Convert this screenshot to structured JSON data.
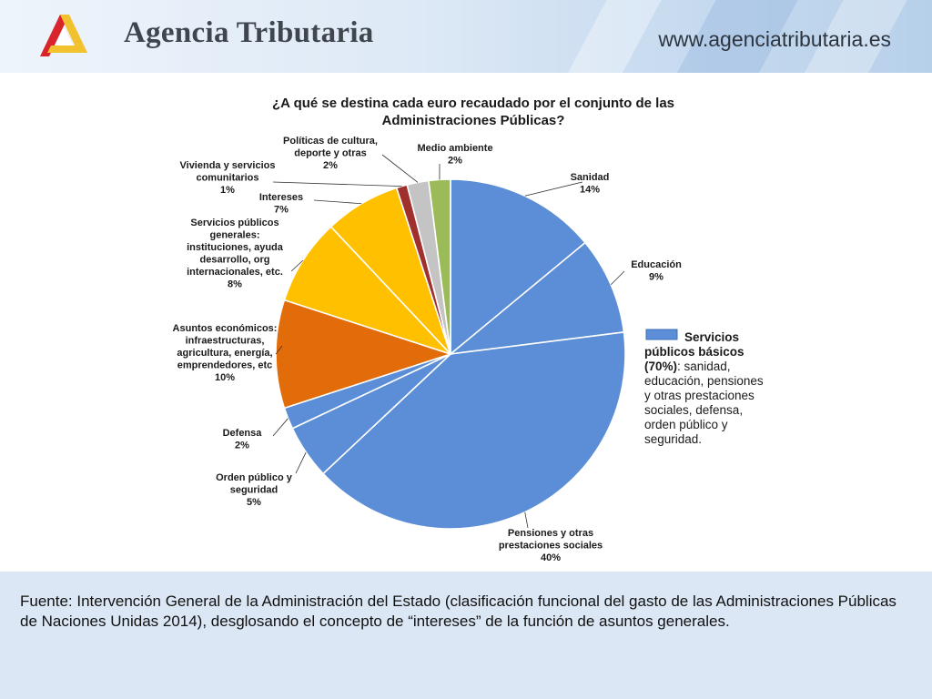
{
  "header": {
    "brand_name": "Agencia Tributaria",
    "site_url": "www.agenciatributaria.es",
    "logo_icon": "agencia-tributaria-logo",
    "colors": {
      "logo_red": "#d9242b",
      "logo_yellow": "#f2c12e",
      "header_blue": "#c9dcf0"
    }
  },
  "chart_data": {
    "type": "pie",
    "title_lines": [
      "¿A qué se destina cada euro recaudado por el conjunto de las",
      "Administraciones Públicas?"
    ],
    "unit": "%",
    "slices": [
      {
        "key": "sanidad",
        "label_lines": [
          "Sanidad"
        ],
        "value": 14,
        "value_label": "14%",
        "color": "#5b8ed6"
      },
      {
        "key": "educacion",
        "label_lines": [
          "Educación"
        ],
        "value": 9,
        "value_label": "9%",
        "color": "#5b8ed6"
      },
      {
        "key": "pensiones",
        "label_lines": [
          "Pensiones y otras",
          "prestaciones sociales"
        ],
        "value": 40,
        "value_label": "40%",
        "color": "#5b8ed6"
      },
      {
        "key": "orden",
        "label_lines": [
          "Orden público y",
          "seguridad"
        ],
        "value": 5,
        "value_label": "5%",
        "color": "#5b8ed6"
      },
      {
        "key": "defensa",
        "label_lines": [
          "Defensa"
        ],
        "value": 2,
        "value_label": "2%",
        "color": "#5b8ed6"
      },
      {
        "key": "economicos",
        "label_lines": [
          "Asuntos económicos:",
          "infraestructuras,",
          "agricultura, energía,",
          "emprendedores, etc"
        ],
        "value": 10,
        "value_label": "10%",
        "color": "#e36c0a"
      },
      {
        "key": "generales",
        "label_lines": [
          "Servicios públicos",
          "generales:",
          "instituciones, ayuda",
          "desarrollo, org",
          "internacionales, etc."
        ],
        "value": 8,
        "value_label": "8%",
        "color": "#ffc000"
      },
      {
        "key": "intereses",
        "label_lines": [
          "Intereses"
        ],
        "value": 7,
        "value_label": "7%",
        "color": "#ffc000"
      },
      {
        "key": "vivienda",
        "label_lines": [
          "Vivienda y  servicios",
          "comunitarios"
        ],
        "value": 1,
        "value_label": "1%",
        "color": "#a0302e"
      },
      {
        "key": "cultura",
        "label_lines": [
          "Políticas de cultura,",
          "deporte y otras"
        ],
        "value": 2,
        "value_label": "2%",
        "color": "#c4c4c4"
      },
      {
        "key": "medioambiente",
        "label_lines": [
          "Medio ambiente"
        ],
        "value": 2,
        "value_label": "2%",
        "color": "#9bbb59"
      }
    ],
    "legend": {
      "placement": "right",
      "color": "#5b8ed6",
      "bold_lines": [
        "Servicios",
        "públicos básicos",
        "(70%)"
      ],
      "tail_text": ": sanidad,",
      "lines": [
        "educación, pensiones",
        "y otras prestaciones",
        "sociales, defensa,",
        "orden público y",
        "seguridad."
      ]
    }
  },
  "footer": {
    "source": "Fuente: Intervención General de la Administración del Estado (clasificación funcional del gasto de las Administraciones Públicas de Naciones Unidas 2014), desglosando el concepto de “intereses” de la función de asuntos generales."
  }
}
